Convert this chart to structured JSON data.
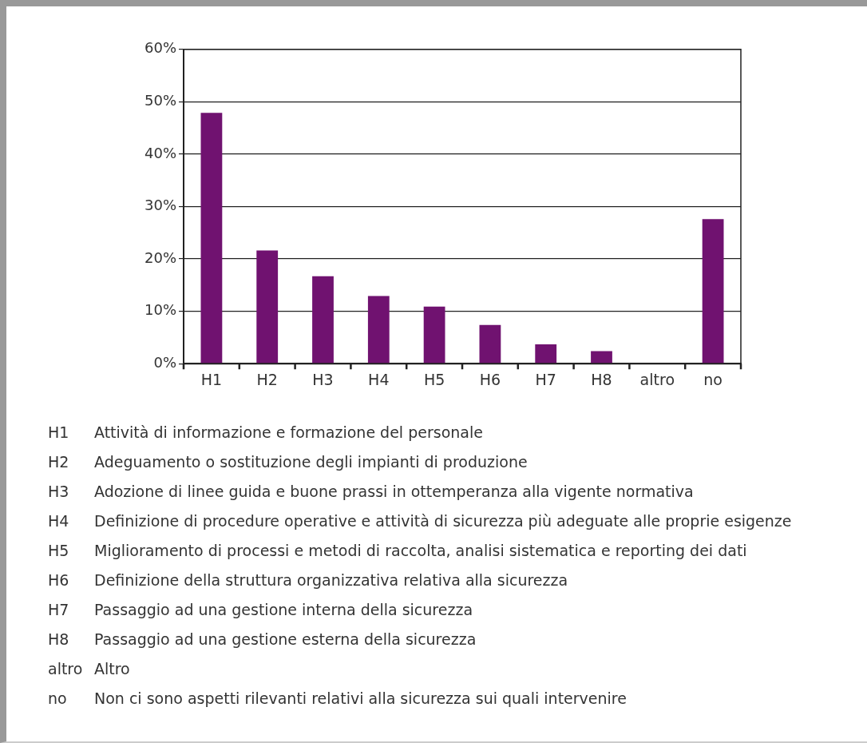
{
  "chart_data": {
    "type": "bar",
    "categories": [
      "H1",
      "H2",
      "H3",
      "H4",
      "H5",
      "H6",
      "H7",
      "H8",
      "altro",
      "no"
    ],
    "values": [
      47.9,
      21.6,
      16.7,
      12.9,
      10.9,
      7.4,
      3.7,
      2.4,
      0,
      27.6
    ],
    "color": "#701270",
    "ylim": [
      0,
      60
    ],
    "yticks": [
      {
        "value": 0,
        "label": "0%"
      },
      {
        "value": 10,
        "label": "10%"
      },
      {
        "value": 20,
        "label": "20%"
      },
      {
        "value": 30,
        "label": "30%"
      },
      {
        "value": 40,
        "label": "40%"
      },
      {
        "value": 50,
        "label": "50%"
      },
      {
        "value": 60,
        "label": "60%"
      }
    ],
    "grid": "y",
    "legend": false,
    "annotations": [
      "H1 Attività di informazione e formazione del personale",
      "H2 Adeguamento o sostituzione degli impianti di produzione",
      "H3 Adozione di linee guida e buone prassi in ottemperanza alla vigente normativa",
      "H4 Definizione di procedure operative e attività di sicurezza più adeguate alle proprie esigenze",
      "H5 Miglioramento di processi e metodi di raccolta, analisi sistematica e reporting dei dati",
      "H6 Definizione della struttura organizzativa relativa alla sicurezza",
      "H7 Passaggio ad una gestione interna della sicurezza",
      "H8 Passaggio ad una gestione esterna della sicurezza",
      "altro Altro",
      "no Non ci sono aspetti rilevanti relativi alla sicurezza sui quali intervenire"
    ]
  }
}
